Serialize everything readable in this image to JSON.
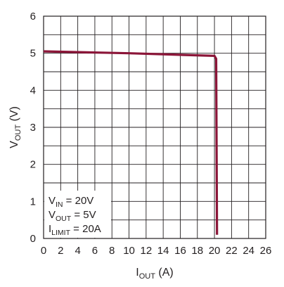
{
  "chart_data": {
    "type": "line",
    "title": "",
    "xlabel": {
      "main": "I",
      "sub": "OUT",
      "unit": " (A)"
    },
    "ylabel": {
      "main": "V",
      "sub": "OUT",
      "unit": " (V)"
    },
    "xlim": [
      0,
      26
    ],
    "ylim": [
      0,
      6
    ],
    "xticks": [
      0,
      2,
      4,
      6,
      8,
      10,
      12,
      14,
      16,
      18,
      20,
      22,
      24,
      26
    ],
    "yticks": [
      0,
      1,
      2,
      3,
      4,
      5,
      6
    ],
    "grid": {
      "x_step": 2,
      "y_step": 0.5
    },
    "series": [
      {
        "name": "",
        "color": "#8b1538",
        "x": [
          0,
          10,
          20,
          20.2,
          20.3
        ],
        "y": [
          5.05,
          5.0,
          4.93,
          4.85,
          0.1
        ]
      }
    ],
    "annotations": [
      {
        "main": "V",
        "sub": "IN",
        "rest": " = 20V"
      },
      {
        "main": "V",
        "sub": "OUT",
        "rest": " = 5V"
      },
      {
        "main": "I",
        "sub": "LIMIT",
        "rest": " = 20A"
      }
    ],
    "annotation_position": "bottom-left"
  }
}
